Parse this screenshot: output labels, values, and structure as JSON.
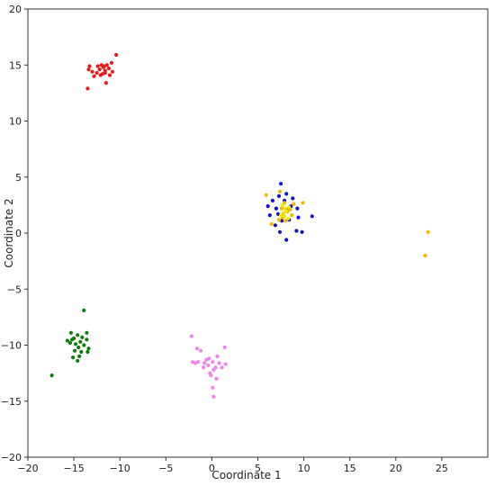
{
  "chart_data": {
    "type": "scatter",
    "xlabel": "Coordinate 1",
    "ylabel": "Coordinate 2",
    "xlim": [
      -20,
      30
    ],
    "ylim": [
      -20,
      20
    ],
    "xticks": [
      -20,
      -15,
      -10,
      -5,
      0,
      5,
      10,
      15,
      20,
      25
    ],
    "yticks": [
      -20,
      -15,
      -10,
      -5,
      0,
      5,
      10,
      15,
      20
    ],
    "grid": false,
    "series": [
      {
        "color": "#e41a1c",
        "points": [
          [
            -11.8,
            14.8
          ],
          [
            -11.6,
            14.5
          ],
          [
            -12.2,
            14.6
          ],
          [
            -11.4,
            15.0
          ],
          [
            -11.9,
            14.2
          ],
          [
            -12.5,
            14.3
          ],
          [
            -11.2,
            14.7
          ],
          [
            -10.9,
            15.2
          ],
          [
            -11.7,
            14.9
          ],
          [
            -12.0,
            15.0
          ],
          [
            -13.3,
            14.9
          ],
          [
            -13.0,
            14.4
          ],
          [
            -13.4,
            14.6
          ],
          [
            -13.5,
            12.9
          ],
          [
            -12.8,
            14.0
          ],
          [
            -11.5,
            13.4
          ],
          [
            -10.4,
            15.9
          ],
          [
            -11.1,
            14.1
          ],
          [
            -12.4,
            14.9
          ],
          [
            -11.6,
            14.3
          ],
          [
            -10.8,
            14.4
          ],
          [
            -12.1,
            14.1
          ]
        ]
      },
      {
        "color": "#1111cc",
        "points": [
          [
            7.5,
            4.4
          ],
          [
            7.3,
            3.3
          ],
          [
            6.6,
            2.9
          ],
          [
            8.1,
            3.5
          ],
          [
            8.6,
            2.4
          ],
          [
            7.0,
            2.2
          ],
          [
            6.3,
            1.6
          ],
          [
            6.9,
            0.7
          ],
          [
            7.4,
            0.1
          ],
          [
            8.1,
            -0.6
          ],
          [
            9.2,
            0.2
          ],
          [
            9.8,
            0.1
          ],
          [
            10.9,
            1.5
          ],
          [
            9.4,
            1.4
          ],
          [
            8.4,
            1.2
          ],
          [
            7.6,
            1.1
          ],
          [
            6.1,
            2.4
          ],
          [
            7.9,
            2.9
          ],
          [
            8.8,
            3.1
          ],
          [
            9.3,
            2.2
          ],
          [
            8.3,
            2.1
          ],
          [
            7.2,
            1.7
          ],
          [
            7.8,
            1.5
          ]
        ]
      },
      {
        "color": "#f5b800",
        "points": [
          [
            7.4,
            3.7
          ],
          [
            5.9,
            3.4
          ],
          [
            7.9,
            2.7
          ],
          [
            8.5,
            2.1
          ],
          [
            8.9,
            2.6
          ],
          [
            9.9,
            2.7
          ],
          [
            8.2,
            1.9
          ],
          [
            7.7,
            1.4
          ],
          [
            8.0,
            1.1
          ],
          [
            7.6,
            2.2
          ],
          [
            8.7,
            1.6
          ],
          [
            7.3,
            1.2
          ],
          [
            6.5,
            0.8
          ],
          [
            23.5,
            0.1
          ],
          [
            23.2,
            -2.0
          ]
        ]
      },
      {
        "color": "#f3e600",
        "points": [
          [
            7.8,
            1.8
          ],
          [
            8.1,
            2.0
          ],
          [
            7.5,
            1.6
          ],
          [
            8.3,
            1.3
          ],
          [
            7.9,
            1.5
          ],
          [
            8.4,
            2.3
          ],
          [
            7.7,
            2.5
          ],
          [
            8.0,
            2.2
          ]
        ]
      },
      {
        "color": "#0a7d0a",
        "points": [
          [
            -13.9,
            -6.9
          ],
          [
            -15.3,
            -8.9
          ],
          [
            -14.6,
            -9.1
          ],
          [
            -13.6,
            -8.9
          ],
          [
            -15.0,
            -9.4
          ],
          [
            -15.7,
            -9.6
          ],
          [
            -14.3,
            -9.7
          ],
          [
            -14.1,
            -9.3
          ],
          [
            -13.6,
            -9.5
          ],
          [
            -14.8,
            -9.9
          ],
          [
            -15.4,
            -9.8
          ],
          [
            -14.5,
            -10.2
          ],
          [
            -13.9,
            -10.0
          ],
          [
            -13.4,
            -10.3
          ],
          [
            -14.9,
            -10.5
          ],
          [
            -13.5,
            -10.6
          ],
          [
            -14.4,
            -11.0
          ],
          [
            -14.6,
            -11.4
          ],
          [
            -15.1,
            -11.1
          ],
          [
            -17.4,
            -12.7
          ],
          [
            -15.2,
            -9.5
          ],
          [
            -14.2,
            -10.6
          ]
        ]
      },
      {
        "color": "#ee82ee",
        "points": [
          [
            -2.2,
            -9.2
          ],
          [
            -1.6,
            -10.3
          ],
          [
            -1.2,
            -10.5
          ],
          [
            1.4,
            -10.2
          ],
          [
            -0.6,
            -11.3
          ],
          [
            -0.8,
            -11.6
          ],
          [
            -0.3,
            -11.2
          ],
          [
            0.1,
            -11.5
          ],
          [
            0.6,
            -11.0
          ],
          [
            1.5,
            -11.7
          ],
          [
            1.1,
            -12.0
          ],
          [
            -2.1,
            -11.5
          ],
          [
            -1.5,
            -11.5
          ],
          [
            -0.4,
            -11.8
          ],
          [
            0.2,
            -12.2
          ],
          [
            -0.2,
            -12.5
          ],
          [
            0.4,
            -12.0
          ],
          [
            -0.1,
            -12.7
          ],
          [
            0.5,
            -13.0
          ],
          [
            0.1,
            -13.8
          ],
          [
            0.2,
            -14.6
          ],
          [
            -0.9,
            -12.0
          ],
          [
            0.8,
            -11.6
          ],
          [
            -1.8,
            -11.6
          ]
        ]
      }
    ]
  }
}
